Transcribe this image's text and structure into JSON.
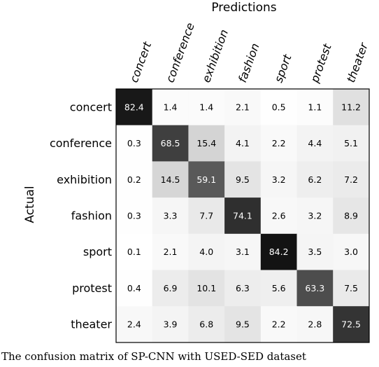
{
  "chart_data": {
    "type": "heatmap",
    "title": "Predictions",
    "xlabel": "Predictions",
    "ylabel": "Actual",
    "x_categories": [
      "concert",
      "conference",
      "exhibition",
      "fashion",
      "sport",
      "protest",
      "theater"
    ],
    "y_categories": [
      "concert",
      "conference",
      "exhibition",
      "fashion",
      "sport",
      "protest",
      "theater"
    ],
    "values": [
      [
        82.4,
        1.4,
        1.4,
        2.1,
        0.5,
        1.1,
        11.2
      ],
      [
        0.3,
        68.5,
        15.4,
        4.1,
        2.2,
        4.4,
        5.1
      ],
      [
        0.2,
        14.5,
        59.1,
        9.5,
        3.2,
        6.2,
        7.2
      ],
      [
        0.3,
        3.3,
        7.7,
        74.1,
        2.6,
        3.2,
        8.9
      ],
      [
        0.1,
        2.1,
        4.0,
        3.1,
        84.2,
        3.5,
        3.0
      ],
      [
        0.4,
        6.9,
        10.1,
        6.3,
        5.6,
        63.3,
        7.5
      ],
      [
        2.4,
        3.9,
        6.8,
        9.5,
        2.2,
        2.8,
        72.5
      ]
    ],
    "value_range": [
      0,
      100
    ],
    "colormap": "grayscale (white = 0, black = high)",
    "x_label_position": "top, rotated",
    "grid": false,
    "legend": "none"
  },
  "caption": "The confusion matrix of SP-CNN with USED-SED dataset"
}
